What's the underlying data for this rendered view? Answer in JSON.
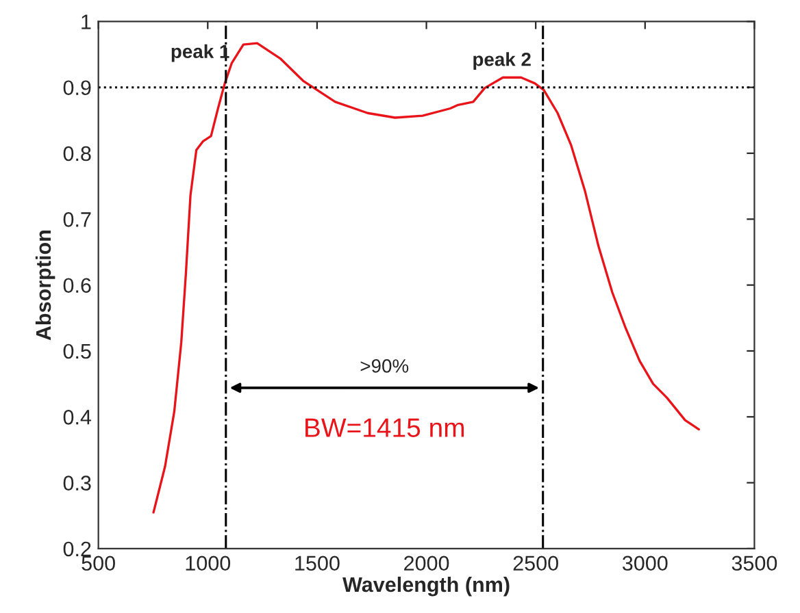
{
  "chart_data": {
    "type": "line",
    "xlabel": "Wavelength (nm)",
    "ylabel": "Absorption",
    "x": [
      752,
      805,
      847,
      879,
      900,
      921,
      948,
      978,
      1015,
      1047,
      1078,
      1110,
      1163,
      1226,
      1331,
      1436,
      1583,
      1731,
      1857,
      1983,
      2109,
      2142,
      2214,
      2267,
      2350,
      2433,
      2496,
      2537,
      2600,
      2662,
      2725,
      2787,
      2850,
      2912,
      2975,
      3037,
      3100,
      3183,
      3246
    ],
    "series": [
      {
        "color": "#e8141a",
        "values": [
          0.255,
          0.325,
          0.408,
          0.513,
          0.617,
          0.736,
          0.805,
          0.818,
          0.826,
          0.868,
          0.906,
          0.937,
          0.965,
          0.967,
          0.944,
          0.91,
          0.878,
          0.861,
          0.854,
          0.857,
          0.868,
          0.873,
          0.878,
          0.899,
          0.915,
          0.915,
          0.906,
          0.896,
          0.861,
          0.812,
          0.743,
          0.659,
          0.589,
          0.534,
          0.485,
          0.45,
          0.429,
          0.395,
          0.381
        ]
      }
    ],
    "xlim": [
      500,
      3500
    ],
    "xticks": [
      500,
      1000,
      1500,
      2000,
      2500,
      3000,
      3500
    ],
    "ylim": [
      0.2,
      1
    ],
    "yticks": [
      0.2,
      0.3,
      0.4,
      0.5,
      0.6,
      0.7,
      0.8,
      0.9,
      1
    ],
    "grid": false,
    "legend": false,
    "marker": "none",
    "line_style": "solid",
    "ref_lines": [
      {
        "axis": "y",
        "value": 0.9,
        "color": "#000000",
        "line_style": "dotted"
      },
      {
        "axis": "x",
        "value": 1083,
        "color": "#000000",
        "line_style": "dashdot"
      },
      {
        "axis": "x",
        "value": 2533,
        "color": "#000000",
        "line_style": "dashdot"
      }
    ],
    "annotations": [
      "peak 1",
      "peak 2",
      ">90%",
      "BW=1415 nm"
    ]
  }
}
